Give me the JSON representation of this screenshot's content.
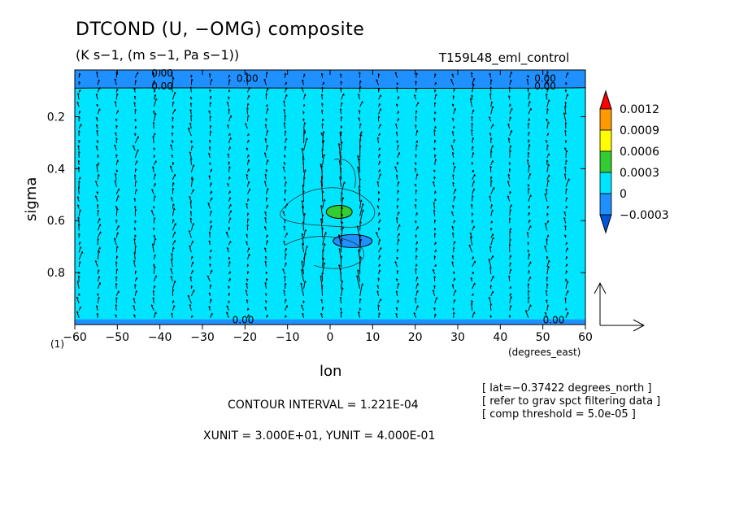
{
  "header": {
    "title": "DTCOND (U, −OMG) composite",
    "subtitle": "(K s−1, (m s−1, Pa s−1))",
    "run_name": "T159L48_eml_control"
  },
  "chart_data": {
    "type": "heatmap",
    "overlay": "vector field with contours",
    "xlabel": "lon",
    "xunit_label": "(degrees_east)",
    "ylabel": "sigma",
    "xlim": [
      -60,
      60
    ],
    "ylim": [
      1.0,
      0.02
    ],
    "x_ticks": [
      -60,
      -50,
      -40,
      -30,
      -20,
      -10,
      0,
      10,
      20,
      30,
      40,
      50,
      60
    ],
    "x_tick_labels": [
      "−60",
      "−50",
      "−40",
      "−30",
      "−20",
      "−10",
      "0",
      "10",
      "20",
      "30",
      "40",
      "50",
      "60"
    ],
    "y_ticks": [
      0.2,
      0.4,
      0.6,
      0.8
    ],
    "y_tick_labels": [
      "0.2",
      "0.4",
      "0.6",
      "0.8"
    ],
    "y_bottom_label": "(1)",
    "colorbar": {
      "levels": [
        0.0012,
        0.0009,
        0.0006,
        0.0003,
        0,
        -0.0003
      ],
      "labels": [
        "0.0012",
        "0.0009",
        "0.0006",
        "0.0003",
        "0",
        "−0.0003"
      ],
      "colors": [
        "#ff0000",
        "#ff9900",
        "#ffff00",
        "#33cc33",
        "#00e5ff",
        "#1e90ff",
        "#0055dd"
      ]
    },
    "contour_labels": [
      {
        "text": "0.00",
        "lon": -42,
        "sigma": 0.03
      },
      {
        "text": "0.00",
        "lon": -22,
        "sigma": 0.05
      },
      {
        "text": "0.00",
        "lon": -42,
        "sigma": 0.08
      },
      {
        "text": "0.00",
        "lon": 48,
        "sigma": 0.05
      },
      {
        "text": "0.00",
        "lon": 48,
        "sigma": 0.08
      },
      {
        "text": "0.00",
        "lon": -23,
        "sigma": 0.98
      },
      {
        "text": "0.00",
        "lon": 50,
        "sigma": 0.98
      }
    ],
    "features": {
      "positive_center": {
        "lon": 1,
        "sigma": 0.56,
        "color": "#33cc33"
      },
      "negative_center": {
        "lon": 3,
        "sigma": 0.66,
        "color": "#1e90ff"
      },
      "top_band_sigma": [
        0.02,
        0.09
      ],
      "bottom_band_sigma": [
        0.98,
        1.0
      ]
    },
    "vector_reference": {
      "xunit": "3.000E+01",
      "yunit": "4.000E-01"
    },
    "contour_interval": "1.221E-04"
  },
  "footer": {
    "contour_interval_text": "CONTOUR INTERVAL = 1.221E-04",
    "units_text": "XUNIT = 3.000E+01, YUNIT = 4.000E-01",
    "info_lines": [
      "[ lat=−0.37422 degrees_north ]",
      "[ refer to grav spct filtering data ]",
      "[ comp threshold = 5.0e-05 ]"
    ]
  }
}
